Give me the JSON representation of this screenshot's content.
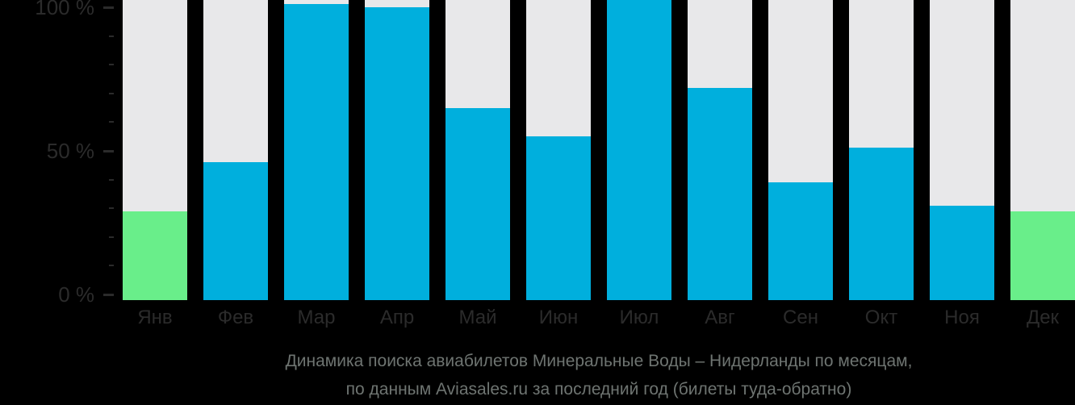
{
  "window": {
    "background": "#000000"
  },
  "chart_data": {
    "type": "bar",
    "title": "Динамика поиска авиабилетов Минеральные Воды – Нидерланды по месяцам, по данным Aviasales.ru за последний год (билеты туда-обратно)",
    "title_line1": "Динамика поиска авиабилетов Минеральные Воды – Нидерланды по месяцам,",
    "title_line2": "по данным Aviasales.ru за последний год (билеты туда-обратно)",
    "categories": [
      "Янв",
      "Фев",
      "Мар",
      "Апр",
      "Май",
      "Июн",
      "Июл",
      "Авг",
      "Сен",
      "Окт",
      "Ноя",
      "Дек"
    ],
    "values": [
      29,
      46,
      101,
      100,
      65,
      55,
      103,
      72,
      39,
      51,
      31,
      29
    ],
    "highlight_indices": [
      0,
      11
    ],
    "colors": {
      "bar_default": "#00afdd",
      "bar_highlight": "#69ee8a",
      "bar_track": "#e8e8ea",
      "axis_text": "#2b2b2b",
      "title_text": "#6e7471",
      "background": "#000000"
    },
    "y_axis": {
      "tick_labels": [
        "100 %",
        "50 %",
        "0 %"
      ],
      "tick_values": [
        100,
        50,
        0
      ],
      "minor_tick_step": 10,
      "ylim": [
        0,
        103
      ]
    },
    "xlabel": "",
    "ylabel": "",
    "grid": false,
    "legend": null
  }
}
